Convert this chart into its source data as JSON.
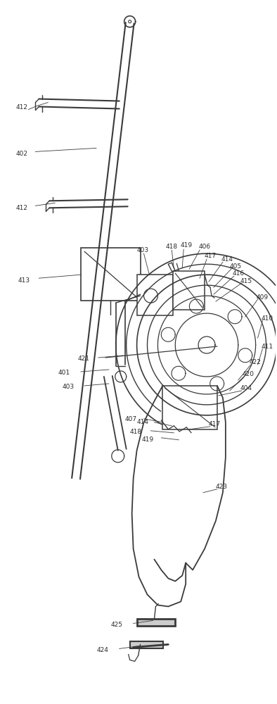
{
  "bg_color": "#ffffff",
  "line_color": "#3a3a3a",
  "label_color": "#2a2a2a",
  "fig_width": 3.94,
  "fig_height": 10.0
}
